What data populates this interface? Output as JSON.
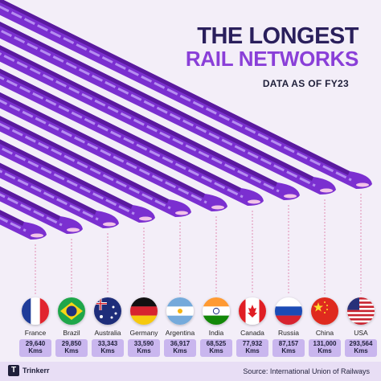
{
  "title_line1": "THE LONGEST",
  "title_line2": "RAIL NETWORKS",
  "subtitle": "DATA AS OF FY23",
  "source": "Source: International Union of Railways",
  "brand": "Trinkerr",
  "brand_mark": "T",
  "colors": {
    "train_body": "#7b2fd0",
    "train_roof": "#5a1a9e",
    "window_band": "#b58cf0",
    "nose_light": "#f2c3e8",
    "badge": "#c9b6ee",
    "title_dark": "#2a1f5c",
    "title_accent": "#8a3fd8",
    "background": "#f3eef8"
  },
  "chart_data": {
    "type": "bar",
    "title": "THE LONGEST RAIL NETWORKS",
    "subtitle": "DATA AS OF FY23",
    "unit": "Kms",
    "categories": [
      "France",
      "Brazil",
      "Australia",
      "Germany",
      "Argentina",
      "India",
      "Canada",
      "Russia",
      "China",
      "USA"
    ],
    "value_labels": [
      "29,640",
      "29,850",
      "33,343",
      "33,590",
      "36,917",
      "68,525",
      "77,932",
      "87,157",
      "131,000",
      "293,564"
    ],
    "values": [
      29640,
      29850,
      33343,
      33590,
      36917,
      68525,
      77932,
      87157,
      131000,
      293564
    ],
    "flags": [
      "france-flag-icon",
      "brazil-flag-icon",
      "australia-flag-icon",
      "germany-flag-icon",
      "argentina-flag-icon",
      "india-flag-icon",
      "canada-flag-icon",
      "russia-flag-icon",
      "china-flag-icon",
      "usa-flag-icon"
    ],
    "legend": "none",
    "grid": false
  }
}
